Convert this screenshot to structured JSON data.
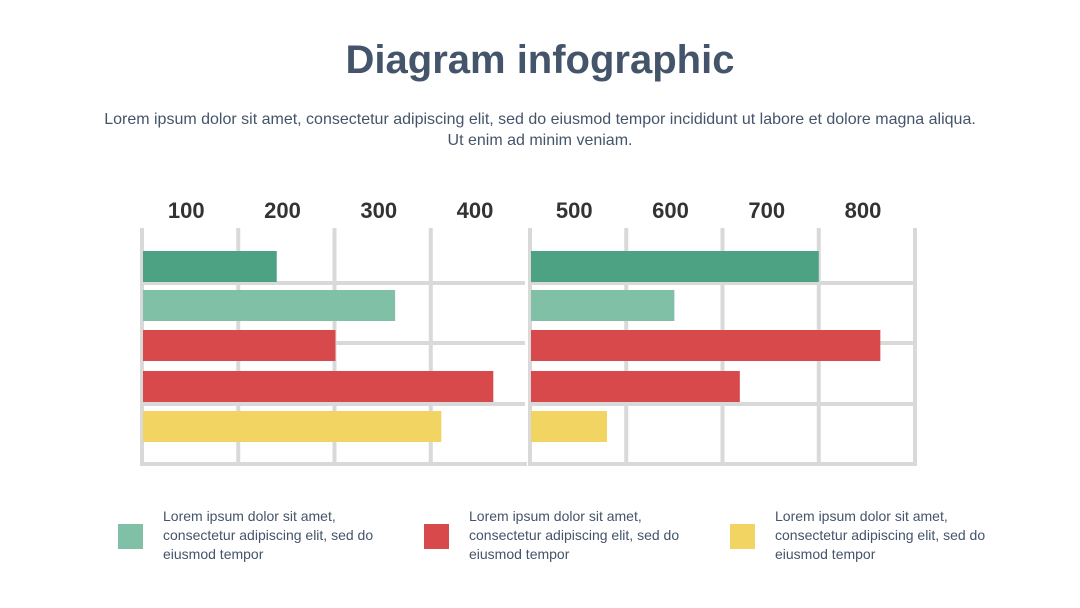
{
  "title": "Diagram infographic",
  "subtitle": "Lorem ipsum dolor sit amet, consectetur adipiscing elit, sed do eiusmod tempor incididunt ut labore et dolore magna aliqua. Ut enim ad minim veniam.",
  "colors": {
    "dark_green": "#4ca283",
    "light_green": "#80c0a7",
    "red": "#d8494b",
    "yellow": "#f2d462",
    "grid": "#d9d9d9",
    "text": "#44546a",
    "tick": "#333333"
  },
  "chart_data": {
    "type": "bar",
    "orientation": "horizontal",
    "xlabel": "",
    "ylabel": "",
    "grid": true,
    "panels": [
      {
        "ticks": [
          100,
          200,
          300,
          400
        ],
        "xlim": [
          100,
          500
        ],
        "bars": [
          {
            "value": 240,
            "color": "#4ca283"
          },
          {
            "value": 363,
            "color": "#80c0a7"
          },
          {
            "value": 301,
            "color": "#d8494b"
          },
          {
            "value": 465,
            "color": "#d8494b"
          },
          {
            "value": 411,
            "color": "#f2d462"
          }
        ]
      },
      {
        "ticks": [
          500,
          600,
          700,
          800
        ],
        "xlim": [
          500,
          900
        ],
        "bars": [
          {
            "value": 800,
            "color": "#4ca283"
          },
          {
            "value": 650,
            "color": "#80c0a7"
          },
          {
            "value": 864,
            "color": "#d8494b"
          },
          {
            "value": 718,
            "color": "#d8494b"
          },
          {
            "value": 580,
            "color": "#f2d462"
          }
        ]
      }
    ]
  },
  "legend": [
    {
      "text": "Lorem ipsum dolor sit amet, consectetur adipiscing elit, sed do eiusmod tempor",
      "color": "#80c0a7"
    },
    {
      "text": "Lorem ipsum dolor sit amet, consectetur adipiscing elit, sed do eiusmod tempor",
      "color": "#d8494b"
    },
    {
      "text": "Lorem ipsum dolor sit amet, consectetur adipiscing elit, sed do eiusmod tempor",
      "color": "#f2d462"
    }
  ]
}
